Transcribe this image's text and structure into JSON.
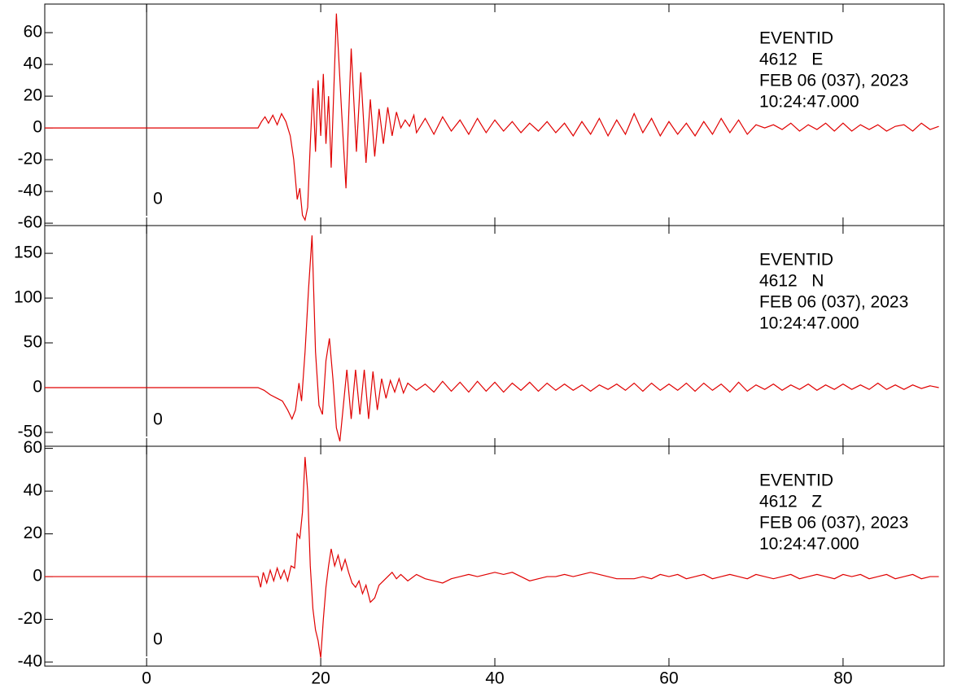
{
  "chart_data": [
    {
      "type": "line",
      "annotation": [
        "EVENTID",
        "4612   E",
        "FEB 06 (037), 2023",
        "10:24:47.000"
      ],
      "marker": 0,
      "xlim": [
        -11.7,
        91.6
      ],
      "xticks": [
        0,
        20,
        40,
        60,
        80
      ],
      "ylim": [
        -61.5,
        78
      ],
      "yticks": [
        -60,
        -40,
        -20,
        0,
        20,
        40,
        60
      ],
      "series": [
        {
          "color": "#e00000",
          "x": [
            -11.7,
            12.8,
            13.2,
            13.6,
            14.0,
            14.5,
            15.0,
            15.5,
            16.0,
            16.5,
            16.9,
            17.3,
            17.6,
            17.9,
            18.2,
            18.5,
            18.8,
            19.1,
            19.4,
            19.7,
            20.0,
            20.3,
            20.6,
            20.9,
            21.2,
            21.8,
            22.4,
            22.9,
            23.5,
            24.1,
            24.6,
            25.2,
            25.7,
            26.2,
            26.7,
            27.2,
            27.7,
            28.2,
            28.7,
            29.2,
            29.7,
            30.2,
            30.7,
            31,
            32,
            33,
            34,
            35,
            36,
            37,
            38,
            39,
            40,
            41,
            42,
            43,
            44,
            45,
            46,
            47,
            48,
            49,
            50,
            51,
            52,
            53,
            54,
            55,
            56,
            57,
            58,
            59,
            60,
            61,
            62,
            63,
            64,
            65,
            66,
            67,
            68,
            69,
            70,
            71,
            72,
            73,
            74,
            75,
            76,
            77,
            78,
            79,
            80,
            81,
            82,
            83,
            84,
            85,
            86,
            87,
            88,
            89,
            90,
            91
          ],
          "values": [
            0,
            0,
            4,
            7,
            3,
            8,
            2,
            9,
            4,
            -5,
            -20,
            -45,
            -38,
            -55,
            -58,
            -50,
            -10,
            25,
            -15,
            30,
            -5,
            34,
            -10,
            20,
            -25,
            72,
            10,
            -38,
            50,
            -15,
            35,
            -22,
            18,
            -18,
            12,
            -10,
            13,
            -5,
            10,
            0,
            5,
            1,
            8,
            -3,
            6,
            -4,
            7,
            -2,
            5,
            -4,
            6,
            -3,
            5,
            -2,
            4,
            -3,
            3,
            -2,
            4,
            -3,
            3,
            -5,
            4,
            -4,
            6,
            -5,
            5,
            -4,
            9,
            -3,
            6,
            -5,
            4,
            -4,
            3,
            -5,
            4,
            -4,
            6,
            -3,
            5,
            -4,
            2,
            0,
            2,
            -1,
            3,
            -2,
            2,
            -1,
            3,
            -2,
            3,
            -2,
            2,
            -1,
            2,
            -2,
            1,
            2,
            -2,
            3,
            -1,
            1
          ]
        }
      ]
    },
    {
      "type": "line",
      "annotation": [
        "EVENTID",
        "4612   N",
        "FEB 06 (037), 2023",
        "10:24:47.000"
      ],
      "marker": 0,
      "xlim": [
        -11.7,
        91.6
      ],
      "xticks": [
        0,
        20,
        40,
        60,
        80
      ],
      "ylim": [
        -65.5,
        181
      ],
      "yticks": [
        -50,
        0,
        50,
        100,
        150
      ],
      "series": [
        {
          "color": "#e00000",
          "x": [
            -11.7,
            12.8,
            13.5,
            14.2,
            15.0,
            15.6,
            16.2,
            16.7,
            17.1,
            17.5,
            17.8,
            18.2,
            18.6,
            19.0,
            19.4,
            19.8,
            20.2,
            20.6,
            21.0,
            21.4,
            21.8,
            22.2,
            22.6,
            23.0,
            23.5,
            24.0,
            24.5,
            25.0,
            25.5,
            26.0,
            26.5,
            27.0,
            27.5,
            28.0,
            28.5,
            29.0,
            29.5,
            30.0,
            31,
            32,
            33,
            34,
            35,
            36,
            37,
            38,
            39,
            40,
            41,
            42,
            43,
            44,
            45,
            46,
            47,
            48,
            49,
            50,
            51,
            52,
            53,
            54,
            55,
            56,
            57,
            58,
            59,
            60,
            61,
            62,
            63,
            64,
            65,
            66,
            67,
            68,
            69,
            70,
            71,
            72,
            73,
            74,
            75,
            76,
            77,
            78,
            79,
            80,
            81,
            82,
            83,
            84,
            85,
            86,
            87,
            88,
            89,
            90,
            91
          ],
          "values": [
            0,
            0,
            -3,
            -8,
            -12,
            -15,
            -25,
            -35,
            -25,
            5,
            -15,
            40,
            110,
            170,
            40,
            -20,
            -30,
            30,
            55,
            10,
            -45,
            -60,
            -20,
            20,
            -35,
            20,
            -30,
            20,
            -35,
            18,
            -25,
            10,
            -12,
            8,
            -5,
            10,
            -6,
            5,
            -3,
            4,
            -5,
            7,
            -4,
            6,
            -5,
            7,
            -4,
            6,
            -5,
            5,
            -3,
            6,
            -4,
            5,
            -3,
            4,
            -3,
            3,
            -4,
            3,
            -2,
            4,
            -3,
            5,
            -4,
            5,
            -3,
            4,
            -3,
            5,
            -4,
            5,
            -3,
            4,
            -5,
            6,
            -4,
            3,
            -2,
            4,
            -3,
            3,
            -2,
            4,
            -3,
            3,
            -2,
            4,
            -2,
            3,
            -2,
            5,
            -2,
            3,
            -2,
            3,
            -1,
            2,
            0
          ]
        }
      ]
    },
    {
      "type": "line",
      "annotation": [
        "EVENTID",
        "4612   Z",
        "FEB 06 (037), 2023",
        "10:24:47.000"
      ],
      "marker": 0,
      "xlim": [
        -11.7,
        91.6
      ],
      "xticks": [
        0,
        20,
        40,
        60,
        80
      ],
      "ylim": [
        -41.9,
        61
      ],
      "yticks": [
        -40,
        -20,
        0,
        20,
        40,
        60
      ],
      "series": [
        {
          "color": "#e00000",
          "x": [
            -11.7,
            12.8,
            13.1,
            13.4,
            13.8,
            14.2,
            14.6,
            15.0,
            15.4,
            15.8,
            16.2,
            16.6,
            17.0,
            17.3,
            17.6,
            17.9,
            18.2,
            18.5,
            18.8,
            19.1,
            19.4,
            19.7,
            20.0,
            20.3,
            20.6,
            20.9,
            21.2,
            21.6,
            22.0,
            22.4,
            22.8,
            23.2,
            23.6,
            24.0,
            24.4,
            24.8,
            25.2,
            25.7,
            26.2,
            26.7,
            27.2,
            27.7,
            28.2,
            28.7,
            29.2,
            30,
            31,
            32,
            33,
            34,
            35,
            36,
            37,
            38,
            39,
            40,
            41,
            42,
            43,
            44,
            45,
            46,
            47,
            48,
            49,
            50,
            51,
            52,
            53,
            54,
            55,
            56,
            57,
            58,
            59,
            60,
            61,
            62,
            63,
            64,
            65,
            66,
            67,
            68,
            69,
            70,
            71,
            72,
            73,
            74,
            75,
            76,
            77,
            78,
            79,
            80,
            81,
            82,
            83,
            84,
            85,
            86,
            87,
            88,
            89,
            90,
            91
          ],
          "values": [
            0,
            0,
            -5,
            2,
            -3,
            3,
            -2,
            4,
            -1,
            3,
            -2,
            5,
            4,
            20,
            18,
            30,
            56,
            40,
            5,
            -15,
            -25,
            -30,
            -38,
            -20,
            -5,
            5,
            13,
            5,
            10,
            3,
            8,
            2,
            -3,
            -5,
            -2,
            -8,
            -4,
            -12,
            -10,
            -4,
            -2,
            0,
            2,
            -1,
            1,
            -2,
            1,
            -1,
            -2,
            -3,
            -1,
            0,
            1,
            0,
            1,
            2,
            1,
            2,
            0,
            -2,
            -1,
            0,
            0,
            1,
            0,
            1,
            2,
            1,
            0,
            -1,
            -1,
            -1,
            0,
            -1,
            1,
            0,
            1,
            -1,
            0,
            1,
            -1,
            0,
            1,
            0,
            -1,
            1,
            0,
            -1,
            0,
            1,
            -1,
            0,
            1,
            0,
            -1,
            1,
            0,
            1,
            -1,
            0,
            1,
            -1,
            0,
            1,
            -1,
            0,
            0
          ]
        }
      ]
    }
  ]
}
